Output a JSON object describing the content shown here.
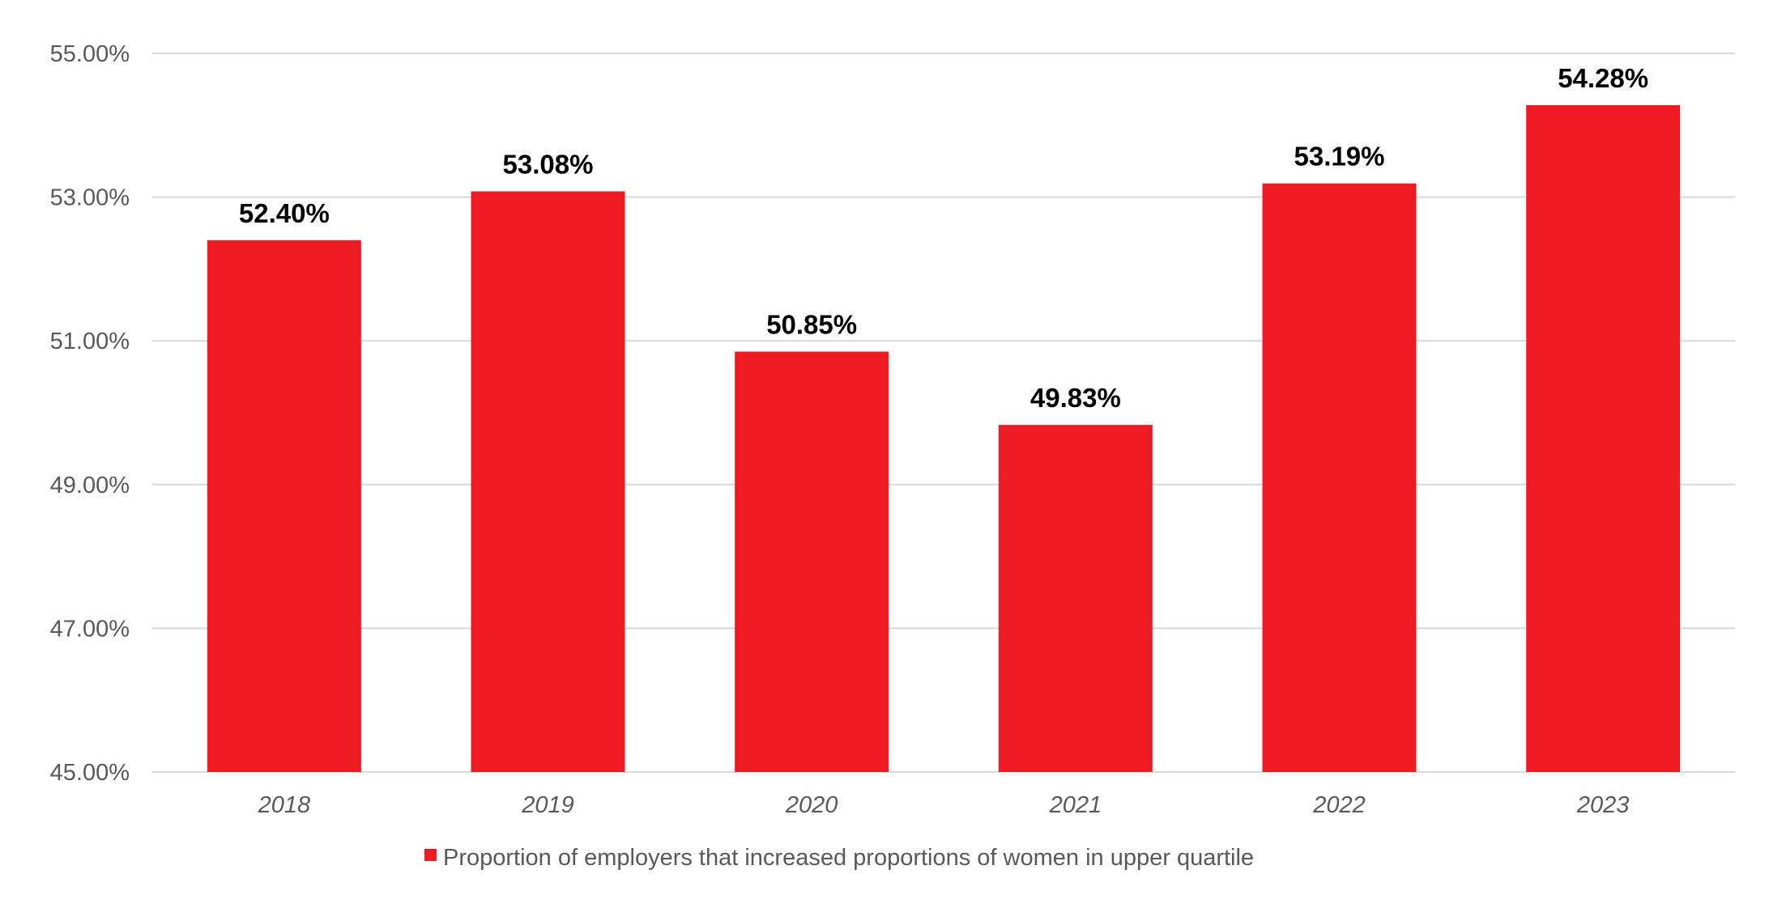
{
  "chart_data": {
    "type": "bar",
    "title": "",
    "xlabel": "",
    "ylabel": "",
    "categories": [
      "2018",
      "2019",
      "2020",
      "2021",
      "2022",
      "2023"
    ],
    "series": [
      {
        "name": "Proportion of employers that increased proportions of women in upper quartile",
        "values": [
          52.4,
          53.08,
          50.85,
          49.83,
          53.19,
          54.28
        ],
        "data_labels": [
          "52.40%",
          "53.08%",
          "50.85%",
          "49.83%",
          "53.19%",
          "54.28%"
        ],
        "color": "#ED1C24"
      }
    ],
    "ylim": [
      45,
      55
    ],
    "yticks": [
      45,
      47,
      49,
      51,
      53,
      55
    ],
    "ytick_labels": [
      "45.00%",
      "47.00%",
      "49.00%",
      "51.00%",
      "53.00%",
      "55.00%"
    ],
    "grid": true,
    "gridline_color": "#D9D9D9",
    "legend_position": "bottom"
  }
}
